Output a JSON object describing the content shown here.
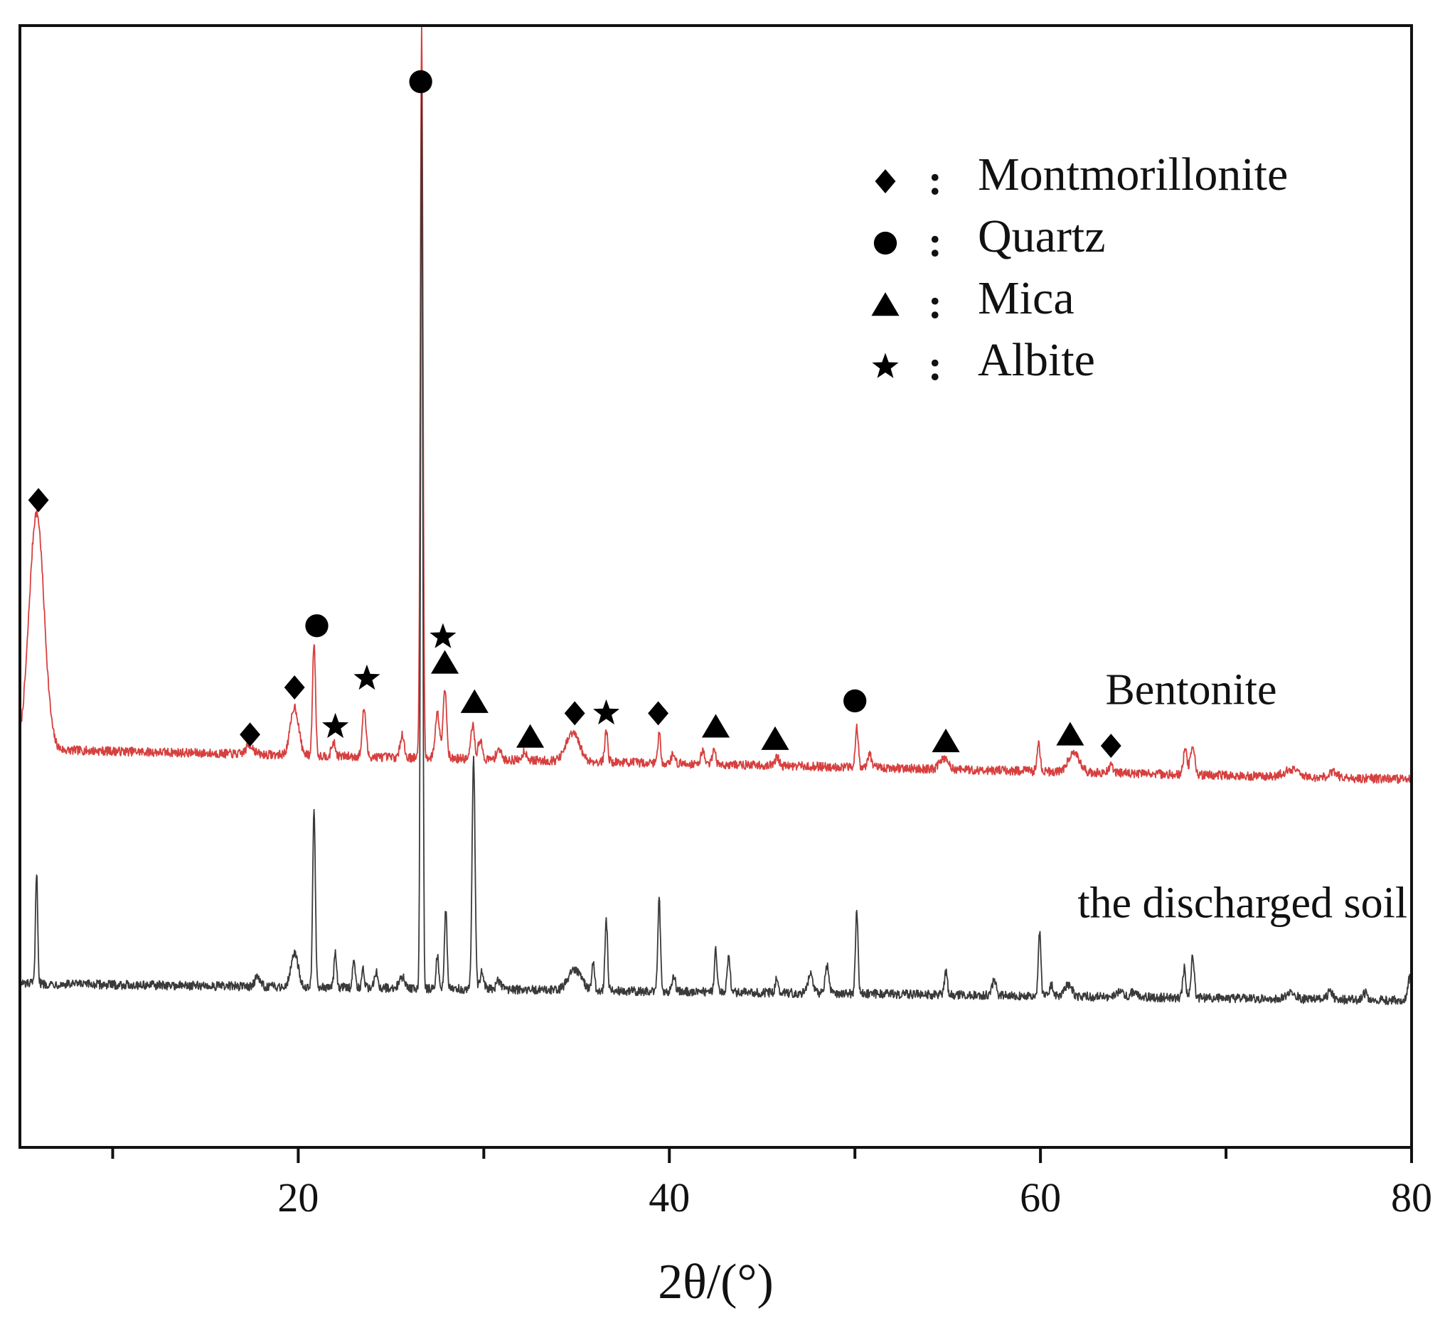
{
  "chart_data": {
    "type": "line",
    "title": "",
    "xlabel": "2θ/(°)",
    "ylabel": "",
    "xlim": [
      5,
      80
    ],
    "ylim": [
      0,
      1
    ],
    "grid": false,
    "x_ticks": [
      20,
      40,
      60,
      80
    ],
    "x_minor_ticks": [
      10,
      30,
      50,
      70
    ],
    "legend": {
      "position": "top-right",
      "separator": ":",
      "entries": [
        {
          "marker": "diamond",
          "label": "Montmorillonite"
        },
        {
          "marker": "circle",
          "label": "Quartz"
        },
        {
          "marker": "triangle",
          "label": "Mica"
        },
        {
          "marker": "star",
          "label": "Albite"
        }
      ]
    },
    "series": [
      {
        "name": "Bentonite",
        "color": "#d6403f",
        "baseline": 0.355,
        "baseline_end": 0.328,
        "noise": 0.004,
        "peaks": [
          {
            "x": 5.9,
            "h": 0.211,
            "w": 0.4
          },
          {
            "x": 17.4,
            "h": 0.008,
            "w": 0.2
          },
          {
            "x": 19.8,
            "h": 0.043,
            "w": 0.22
          },
          {
            "x": 20.85,
            "h": 0.101,
            "w": 0.08
          },
          {
            "x": 21.9,
            "h": 0.012,
            "w": 0.1
          },
          {
            "x": 23.55,
            "h": 0.043,
            "w": 0.1
          },
          {
            "x": 25.6,
            "h": 0.022,
            "w": 0.1
          },
          {
            "x": 26.65,
            "h": 0.651,
            "w": 0.07
          },
          {
            "x": 27.5,
            "h": 0.04,
            "w": 0.12
          },
          {
            "x": 27.9,
            "h": 0.062,
            "w": 0.1
          },
          {
            "x": 29.4,
            "h": 0.03,
            "w": 0.1
          },
          {
            "x": 29.8,
            "h": 0.018,
            "w": 0.1
          },
          {
            "x": 30.8,
            "h": 0.01,
            "w": 0.12
          },
          {
            "x": 32.2,
            "h": 0.008,
            "w": 0.12
          },
          {
            "x": 34.8,
            "h": 0.025,
            "w": 0.35
          },
          {
            "x": 36.6,
            "h": 0.028,
            "w": 0.08
          },
          {
            "x": 39.45,
            "h": 0.028,
            "w": 0.07
          },
          {
            "x": 40.2,
            "h": 0.008,
            "w": 0.1
          },
          {
            "x": 41.8,
            "h": 0.012,
            "w": 0.1
          },
          {
            "x": 42.4,
            "h": 0.016,
            "w": 0.08
          },
          {
            "x": 45.8,
            "h": 0.008,
            "w": 0.1
          },
          {
            "x": 50.1,
            "h": 0.037,
            "w": 0.08
          },
          {
            "x": 50.8,
            "h": 0.012,
            "w": 0.1
          },
          {
            "x": 54.8,
            "h": 0.01,
            "w": 0.22
          },
          {
            "x": 59.9,
            "h": 0.024,
            "w": 0.09
          },
          {
            "x": 61.8,
            "h": 0.018,
            "w": 0.3
          },
          {
            "x": 63.8,
            "h": 0.006,
            "w": 0.15
          },
          {
            "x": 67.8,
            "h": 0.022,
            "w": 0.1
          },
          {
            "x": 68.2,
            "h": 0.024,
            "w": 0.12
          },
          {
            "x": 73.5,
            "h": 0.006,
            "w": 0.4
          },
          {
            "x": 75.8,
            "h": 0.005,
            "w": 0.2
          }
        ]
      },
      {
        "name": "the discharged soil",
        "color": "#3a3a3a",
        "baseline": 0.146,
        "baseline_end": 0.131,
        "noise": 0.004,
        "peaks": [
          {
            "x": 5.9,
            "h": 0.1,
            "w": 0.06
          },
          {
            "x": 17.8,
            "h": 0.008,
            "w": 0.15
          },
          {
            "x": 19.8,
            "h": 0.03,
            "w": 0.2
          },
          {
            "x": 20.85,
            "h": 0.162,
            "w": 0.07
          },
          {
            "x": 22.0,
            "h": 0.03,
            "w": 0.07
          },
          {
            "x": 23.0,
            "h": 0.027,
            "w": 0.07
          },
          {
            "x": 23.5,
            "h": 0.016,
            "w": 0.07
          },
          {
            "x": 24.2,
            "h": 0.014,
            "w": 0.1
          },
          {
            "x": 25.6,
            "h": 0.01,
            "w": 0.15
          },
          {
            "x": 26.65,
            "h": 0.8,
            "w": 0.06
          },
          {
            "x": 27.5,
            "h": 0.03,
            "w": 0.07
          },
          {
            "x": 27.95,
            "h": 0.072,
            "w": 0.07
          },
          {
            "x": 29.45,
            "h": 0.205,
            "w": 0.08
          },
          {
            "x": 29.9,
            "h": 0.016,
            "w": 0.1
          },
          {
            "x": 30.8,
            "h": 0.008,
            "w": 0.12
          },
          {
            "x": 34.9,
            "h": 0.018,
            "w": 0.35
          },
          {
            "x": 35.9,
            "h": 0.026,
            "w": 0.07
          },
          {
            "x": 36.6,
            "h": 0.062,
            "w": 0.07
          },
          {
            "x": 39.45,
            "h": 0.082,
            "w": 0.07
          },
          {
            "x": 40.25,
            "h": 0.014,
            "w": 0.08
          },
          {
            "x": 42.5,
            "h": 0.038,
            "w": 0.07
          },
          {
            "x": 43.2,
            "h": 0.03,
            "w": 0.08
          },
          {
            "x": 45.8,
            "h": 0.014,
            "w": 0.08
          },
          {
            "x": 47.6,
            "h": 0.018,
            "w": 0.12
          },
          {
            "x": 48.5,
            "h": 0.024,
            "w": 0.1
          },
          {
            "x": 50.1,
            "h": 0.074,
            "w": 0.07
          },
          {
            "x": 54.9,
            "h": 0.02,
            "w": 0.08
          },
          {
            "x": 57.5,
            "h": 0.014,
            "w": 0.1
          },
          {
            "x": 59.95,
            "h": 0.058,
            "w": 0.07
          },
          {
            "x": 60.6,
            "h": 0.01,
            "w": 0.1
          },
          {
            "x": 61.5,
            "h": 0.01,
            "w": 0.2
          },
          {
            "x": 64.3,
            "h": 0.006,
            "w": 0.15
          },
          {
            "x": 65.0,
            "h": 0.005,
            "w": 0.15
          },
          {
            "x": 67.75,
            "h": 0.026,
            "w": 0.08
          },
          {
            "x": 68.2,
            "h": 0.036,
            "w": 0.09
          },
          {
            "x": 73.5,
            "h": 0.006,
            "w": 0.25
          },
          {
            "x": 75.6,
            "h": 0.008,
            "w": 0.12
          },
          {
            "x": 77.5,
            "h": 0.006,
            "w": 0.12
          },
          {
            "x": 79.9,
            "h": 0.02,
            "w": 0.1
          }
        ]
      }
    ],
    "series_labels": [
      {
        "text": "Bentonite",
        "x": 63.5,
        "y": 0.395
      },
      {
        "text": "the discharged soil",
        "x": 62.0,
        "y": 0.205
      }
    ],
    "annotations": [
      {
        "marker": "diamond",
        "x": 6.0,
        "y": 0.577
      },
      {
        "marker": "diamond",
        "x": 17.4,
        "y": 0.368
      },
      {
        "marker": "diamond",
        "x": 19.8,
        "y": 0.41
      },
      {
        "marker": "circle",
        "x": 21.0,
        "y": 0.465
      },
      {
        "marker": "star",
        "x": 22.0,
        "y": 0.375
      },
      {
        "marker": "star",
        "x": 23.7,
        "y": 0.418
      },
      {
        "marker": "circle",
        "x": 26.6,
        "y": 0.95
      },
      {
        "marker": "star",
        "x": 27.8,
        "y": 0.455
      },
      {
        "marker": "triangle",
        "x": 27.9,
        "y": 0.432
      },
      {
        "marker": "triangle",
        "x": 29.5,
        "y": 0.397
      },
      {
        "marker": "triangle",
        "x": 32.5,
        "y": 0.366
      },
      {
        "marker": "diamond",
        "x": 34.9,
        "y": 0.387
      },
      {
        "marker": "star",
        "x": 36.6,
        "y": 0.387
      },
      {
        "marker": "diamond",
        "x": 39.4,
        "y": 0.387
      },
      {
        "marker": "triangle",
        "x": 42.5,
        "y": 0.375
      },
      {
        "marker": "triangle",
        "x": 45.7,
        "y": 0.364
      },
      {
        "marker": "circle",
        "x": 50.0,
        "y": 0.398
      },
      {
        "marker": "triangle",
        "x": 54.9,
        "y": 0.362
      },
      {
        "marker": "triangle",
        "x": 61.6,
        "y": 0.368
      },
      {
        "marker": "diamond",
        "x": 63.8,
        "y": 0.358
      }
    ]
  }
}
